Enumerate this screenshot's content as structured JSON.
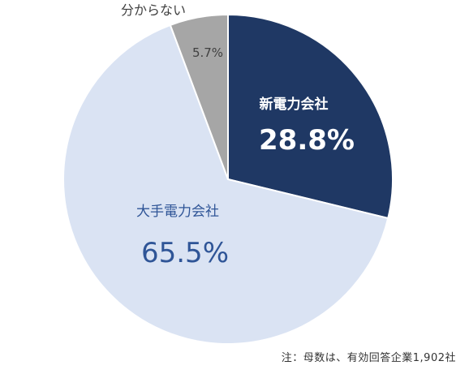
{
  "chart_data": {
    "type": "pie",
    "slices": [
      {
        "label": "新電力会社",
        "value": 28.8,
        "value_label": "28.8%",
        "color": "#1f3864",
        "label_color": "#ffffff",
        "value_color": "#ffffff"
      },
      {
        "label": "大手電力会社",
        "value": 65.5,
        "value_label": "65.5%",
        "color": "#dae3f3",
        "label_color": "#2f5597",
        "value_color": "#2f5597"
      },
      {
        "label": "分からない",
        "value": 5.7,
        "value_label": "5.7%",
        "color": "#a6a6a6",
        "label_color": "#404040",
        "value_color": "#404040"
      }
    ]
  },
  "footnote": "注：母数は、有効回答企業1,902社"
}
